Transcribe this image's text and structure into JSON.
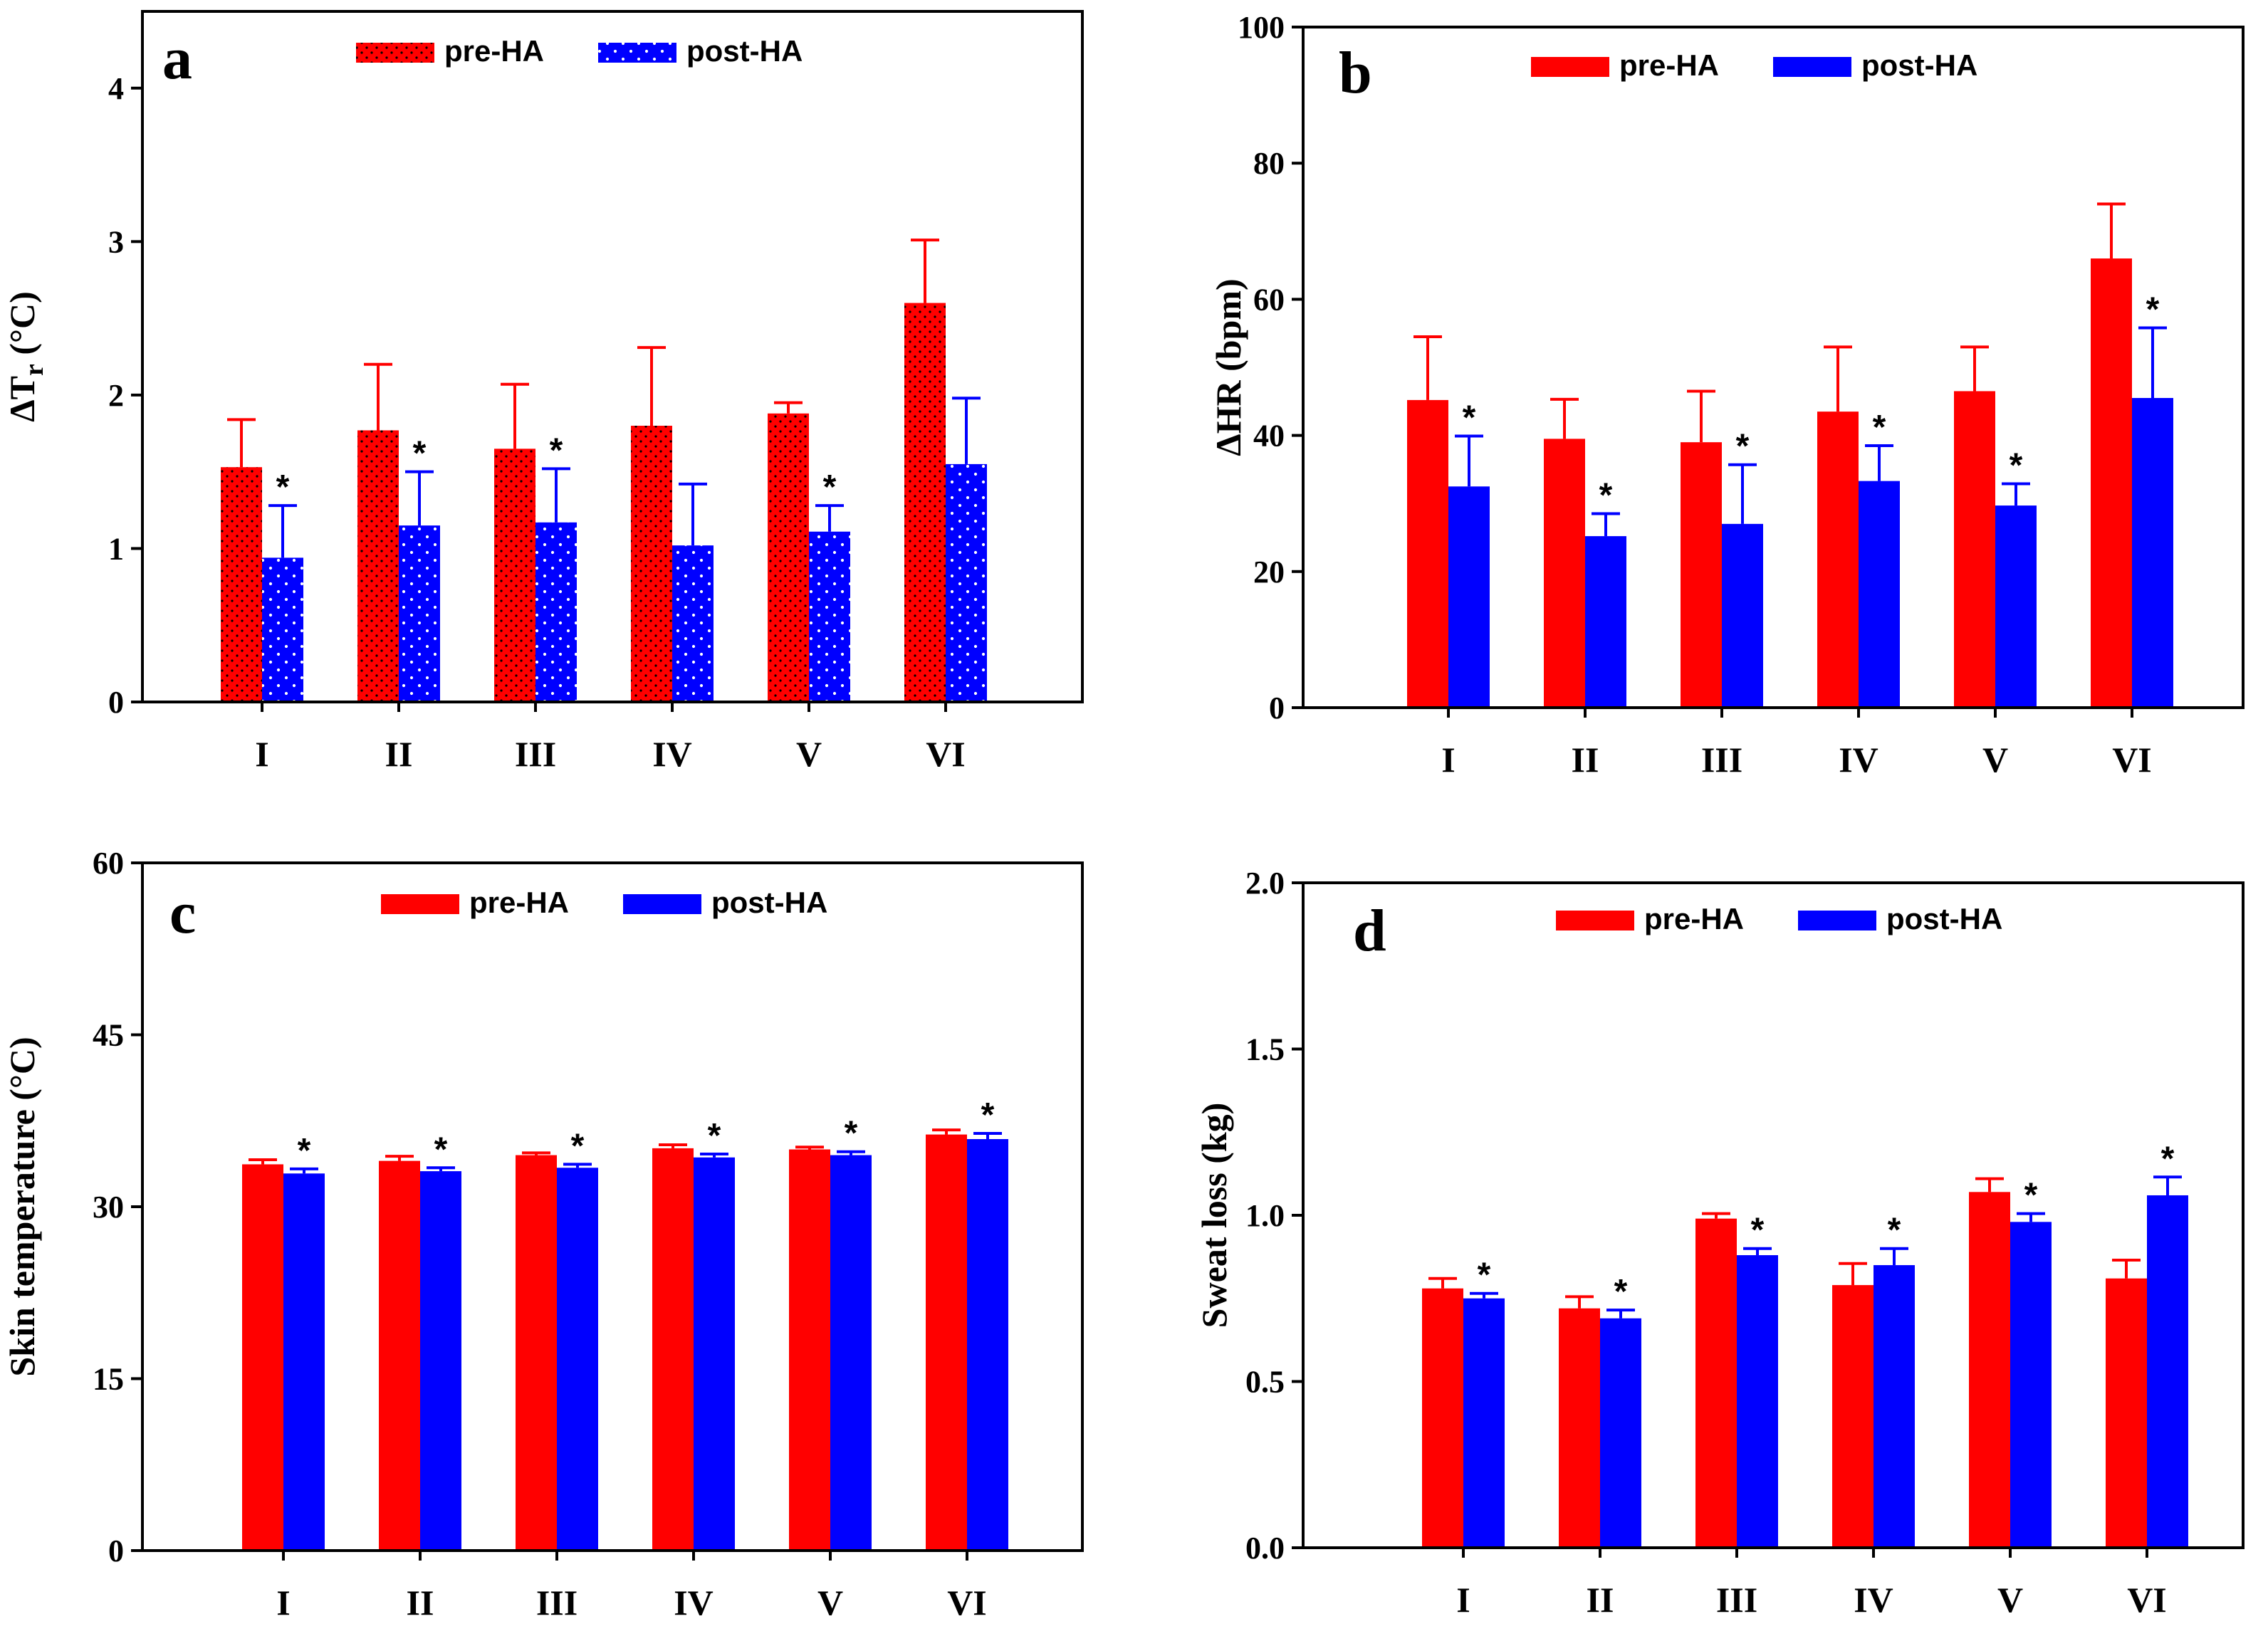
{
  "colors": {
    "pre": "#ff0000",
    "post": "#0000ff",
    "axis": "#000000",
    "dots": "#101010"
  },
  "legend": {
    "pre": "pre-HA",
    "post": "post-HA"
  },
  "chart_data": [
    {
      "type": "bar",
      "panel_label": "a",
      "ylabel_main": "ΔT",
      "ylabel_sub": "r",
      "ylabel_rest": " (°C)",
      "categories": [
        "I",
        "II",
        "III",
        "IV",
        "V",
        "VI"
      ],
      "ylim": [
        0,
        4.5
      ],
      "yticks": [
        0,
        1,
        2,
        3,
        4
      ],
      "ytick_labels": [
        "0",
        "1",
        "2",
        "3",
        "4"
      ],
      "series": [
        {
          "name": "pre-HA",
          "values": [
            1.53,
            1.77,
            1.65,
            1.8,
            1.88,
            2.6
          ],
          "errors": [
            0.31,
            0.43,
            0.42,
            0.51,
            0.07,
            0.41
          ]
        },
        {
          "name": "post-HA",
          "values": [
            0.94,
            1.15,
            1.17,
            1.02,
            1.11,
            1.55
          ],
          "errors": [
            0.34,
            0.35,
            0.35,
            0.4,
            0.17,
            0.43
          ],
          "significant": [
            true,
            true,
            true,
            false,
            true,
            false
          ]
        }
      ],
      "star": "*",
      "pattern": "dots"
    },
    {
      "type": "bar",
      "panel_label": "b",
      "ylabel_main": "ΔHR",
      "ylabel_rest": " (bpm)",
      "categories": [
        "I",
        "II",
        "III",
        "IV",
        "V",
        "VI"
      ],
      "ylim": [
        0,
        100
      ],
      "yticks": [
        0,
        20,
        40,
        60,
        80,
        100
      ],
      "ytick_labels": [
        "0",
        "20",
        "40",
        "60",
        "80",
        "100"
      ],
      "series": [
        {
          "name": "pre-HA",
          "values": [
            45.2,
            39.5,
            39.0,
            43.5,
            46.5,
            66.0
          ],
          "errors": [
            9.3,
            5.8,
            7.5,
            9.5,
            6.5,
            8.0
          ]
        },
        {
          "name": "post-HA",
          "values": [
            32.5,
            25.2,
            27.0,
            33.3,
            29.7,
            45.5
          ],
          "errors": [
            7.4,
            3.3,
            8.7,
            5.2,
            3.2,
            10.3
          ],
          "significant": [
            true,
            true,
            true,
            true,
            true,
            true
          ]
        }
      ],
      "star": "*"
    },
    {
      "type": "bar",
      "panel_label": "c",
      "ylabel": "Skin temperature (°C)",
      "categories": [
        "I",
        "II",
        "III",
        "IV",
        "V",
        "VI"
      ],
      "ylim": [
        0,
        60
      ],
      "yticks": [
        0,
        15,
        30,
        45,
        60
      ],
      "ytick_labels": [
        "0",
        "15",
        "30",
        "45",
        "60"
      ],
      "series": [
        {
          "name": "pre-HA",
          "values": [
            33.7,
            34.0,
            34.5,
            35.1,
            35.0,
            36.3
          ],
          "errors": [
            0.4,
            0.4,
            0.2,
            0.3,
            0.2,
            0.4
          ]
        },
        {
          "name": "post-HA",
          "values": [
            32.9,
            33.1,
            33.4,
            34.3,
            34.5,
            35.9
          ],
          "errors": [
            0.4,
            0.3,
            0.3,
            0.3,
            0.3,
            0.5
          ],
          "significant": [
            true,
            true,
            true,
            true,
            true,
            true
          ]
        }
      ],
      "star": "*"
    },
    {
      "type": "bar",
      "panel_label": "d",
      "ylabel": "Sweat loss (kg)",
      "categories": [
        "I",
        "II",
        "III",
        "IV",
        "V",
        "VI"
      ],
      "ylim": [
        0,
        2.0
      ],
      "yticks": [
        0,
        0.5,
        1.0,
        1.5,
        2.0
      ],
      "ytick_labels": [
        "0.0",
        "0.5",
        "1.0",
        "1.5",
        "2.0"
      ],
      "series": [
        {
          "name": "pre-HA",
          "values": [
            0.78,
            0.72,
            0.99,
            0.79,
            1.07,
            0.81
          ],
          "errors": [
            0.03,
            0.035,
            0.015,
            0.065,
            0.04,
            0.055
          ]
        },
        {
          "name": "post-HA",
          "values": [
            0.75,
            0.69,
            0.88,
            0.85,
            0.98,
            1.06
          ],
          "errors": [
            0.015,
            0.025,
            0.02,
            0.05,
            0.025,
            0.055
          ],
          "significant": [
            true,
            true,
            true,
            true,
            true,
            true
          ]
        }
      ],
      "star": "*"
    }
  ]
}
